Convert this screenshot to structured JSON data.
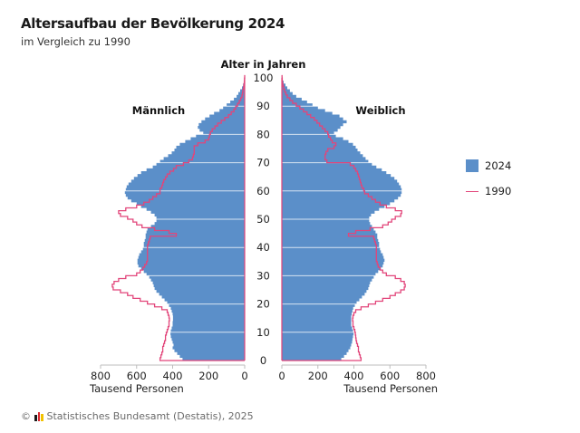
{
  "header": {
    "title": "Altersaufbau der Bevölkerung 2024",
    "subtitle": "im Vergleich zu 1990"
  },
  "footer": {
    "copyright_symbol": "©",
    "source": "Statistisches Bundesamt (Destatis), 2025",
    "logo_colors": [
      "#1a1a1a",
      "#d9272e",
      "#f2c200"
    ]
  },
  "legend": {
    "items": [
      {
        "label": "2024",
        "type": "bar",
        "color": "#5b8fc9"
      },
      {
        "label": "1990",
        "type": "line",
        "color": "#e2457a"
      }
    ]
  },
  "colors": {
    "bar_2024": "#5b8fc9",
    "line_1990": "#e2457a",
    "gridline": "#d6e3f2",
    "axis": "#bdbdbd"
  },
  "chart_data": {
    "type": "bar",
    "subtype": "population-pyramid",
    "title": "Altersaufbau der Bevölkerung 2024",
    "subtitle": "im Vergleich zu 1990",
    "center_axis_label": "Alter in Jahren",
    "age_ticks": [
      0,
      10,
      20,
      30,
      40,
      50,
      60,
      70,
      80,
      90,
      100
    ],
    "left_panel_label": "Männlich",
    "right_panel_label": "Weiblich",
    "xlabel_left": "Tausend Personen",
    "xlabel_right": "Tausend Personen",
    "x_ticks": [
      0,
      200,
      400,
      600,
      800
    ],
    "xlim": [
      0,
      800
    ],
    "ylim": [
      0,
      100
    ],
    "ages": [
      0,
      1,
      2,
      3,
      4,
      5,
      6,
      7,
      8,
      9,
      10,
      11,
      12,
      13,
      14,
      15,
      16,
      17,
      18,
      19,
      20,
      21,
      22,
      23,
      24,
      25,
      26,
      27,
      28,
      29,
      30,
      31,
      32,
      33,
      34,
      35,
      36,
      37,
      38,
      39,
      40,
      41,
      42,
      43,
      44,
      45,
      46,
      47,
      48,
      49,
      50,
      51,
      52,
      53,
      54,
      55,
      56,
      57,
      58,
      59,
      60,
      61,
      62,
      63,
      64,
      65,
      66,
      67,
      68,
      69,
      70,
      71,
      72,
      73,
      74,
      75,
      76,
      77,
      78,
      79,
      80,
      81,
      82,
      83,
      84,
      85,
      86,
      87,
      88,
      89,
      90,
      91,
      92,
      93,
      94,
      95,
      96,
      97,
      98,
      99,
      100
    ],
    "series": [
      {
        "name": "2024 Männlich",
        "side": "left",
        "style": "bar",
        "values": [
          345,
          360,
          375,
          390,
          400,
          395,
          400,
          405,
          410,
          412,
          410,
          405,
          400,
          400,
          398,
          398,
          400,
          405,
          410,
          420,
          430,
          445,
          460,
          475,
          490,
          500,
          505,
          510,
          520,
          530,
          545,
          560,
          575,
          590,
          595,
          595,
          590,
          585,
          575,
          565,
          560,
          560,
          555,
          550,
          550,
          545,
          540,
          520,
          500,
          490,
          490,
          500,
          520,
          545,
          575,
          600,
          630,
          650,
          660,
          665,
          660,
          655,
          645,
          630,
          615,
          595,
          575,
          545,
          510,
          490,
          470,
          450,
          425,
          405,
          390,
          380,
          360,
          330,
          300,
          270,
          230,
          250,
          260,
          255,
          240,
          220,
          195,
          170,
          140,
          120,
          100,
          80,
          60,
          45,
          35,
          25,
          15,
          9,
          5,
          3,
          2
        ]
      },
      {
        "name": "1990 Männlich",
        "side": "left",
        "style": "line",
        "values": [
          470,
          465,
          460,
          455,
          455,
          450,
          445,
          440,
          440,
          435,
          430,
          425,
          420,
          420,
          418,
          420,
          425,
          430,
          460,
          500,
          540,
          580,
          620,
          650,
          690,
          730,
          735,
          725,
          700,
          660,
          600,
          580,
          565,
          555,
          545,
          540,
          540,
          540,
          540,
          540,
          540,
          535,
          530,
          525,
          380,
          420,
          500,
          570,
          600,
          620,
          650,
          690,
          700,
          660,
          600,
          560,
          530,
          510,
          490,
          470,
          470,
          460,
          455,
          450,
          440,
          430,
          415,
          395,
          380,
          340,
          310,
          290,
          285,
          280,
          280,
          280,
          260,
          220,
          200,
          195,
          190,
          180,
          165,
          150,
          130,
          110,
          90,
          75,
          60,
          50,
          40,
          30,
          22,
          15,
          12,
          10,
          6,
          4,
          2,
          1,
          0
        ]
      },
      {
        "name": "2024 Weiblich",
        "side": "right",
        "style": "bar",
        "values": [
          330,
          345,
          360,
          370,
          380,
          385,
          390,
          392,
          395,
          398,
          395,
          390,
          385,
          385,
          385,
          385,
          388,
          392,
          396,
          405,
          415,
          430,
          445,
          460,
          470,
          480,
          485,
          490,
          500,
          510,
          520,
          535,
          550,
          560,
          565,
          570,
          565,
          560,
          550,
          545,
          540,
          540,
          535,
          530,
          530,
          520,
          510,
          500,
          490,
          485,
          485,
          495,
          515,
          540,
          570,
          600,
          625,
          645,
          660,
          665,
          665,
          660,
          650,
          640,
          625,
          605,
          580,
          555,
          525,
          500,
          480,
          465,
          450,
          435,
          420,
          410,
          395,
          370,
          340,
          300,
          290,
          310,
          325,
          340,
          360,
          340,
          320,
          280,
          240,
          200,
          170,
          140,
          110,
          80,
          60,
          45,
          30,
          20,
          10,
          5,
          2
        ]
      },
      {
        "name": "1990 Weiblich",
        "side": "right",
        "style": "line",
        "values": [
          440,
          435,
          430,
          425,
          425,
          420,
          415,
          412,
          410,
          408,
          405,
          400,
          395,
          395,
          393,
          395,
          400,
          410,
          440,
          480,
          520,
          560,
          600,
          630,
          660,
          680,
          685,
          680,
          660,
          630,
          580,
          560,
          545,
          535,
          530,
          525,
          525,
          525,
          525,
          525,
          525,
          520,
          515,
          510,
          370,
          410,
          490,
          560,
          590,
          610,
          630,
          660,
          665,
          630,
          580,
          545,
          520,
          500,
          480,
          460,
          455,
          445,
          440,
          435,
          430,
          425,
          420,
          410,
          400,
          380,
          250,
          240,
          240,
          245,
          255,
          290,
          300,
          280,
          270,
          260,
          255,
          240,
          225,
          210,
          195,
          180,
          160,
          140,
          120,
          100,
          80,
          60,
          45,
          30,
          22,
          15,
          10,
          6,
          3,
          2,
          1
        ]
      }
    ],
    "grid": true,
    "legend_position": "right"
  }
}
